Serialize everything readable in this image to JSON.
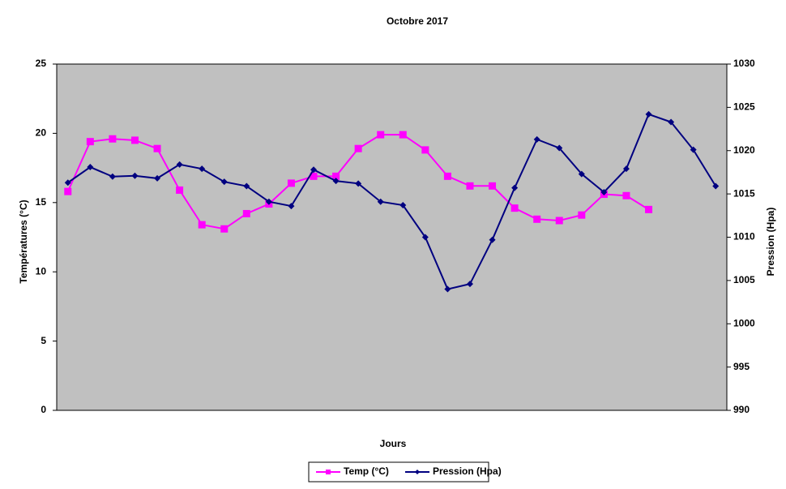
{
  "chart_data": {
    "type": "line",
    "title": "Octobre 2017",
    "xlabel": "Jours",
    "ylabel": "Températures (°C)",
    "y2label": "Pression (Hpa)",
    "categories": [
      null,
      null,
      null,
      null,
      null,
      null,
      null,
      null,
      null,
      null,
      null,
      null,
      null,
      null,
      null,
      null,
      null,
      null,
      null,
      null,
      null,
      null,
      null,
      null,
      null,
      null,
      null,
      null,
      null,
      null
    ],
    "series": [
      {
        "name": "Temp (°C)",
        "color": "#ff00ff",
        "marker": "square",
        "values": [
          15.8,
          19.4,
          19.6,
          19.5,
          18.9,
          15.9,
          13.4,
          13.1,
          14.2,
          14.9,
          16.4,
          16.9,
          16.9,
          18.9,
          19.9,
          19.9,
          18.8,
          16.9,
          16.2,
          16.2,
          14.6,
          13.8,
          13.7,
          14.1,
          15.6,
          15.5,
          14.5,
          null,
          null,
          null
        ]
      },
      {
        "name": "Pression (Hpa)",
        "color": "#000080",
        "marker": "diamond",
        "axis": "y2",
        "values": [
          1016.3,
          1018.1,
          1017.0,
          1017.1,
          1016.8,
          1018.4,
          1017.9,
          1016.4,
          1015.9,
          1014.1,
          1013.6,
          1017.8,
          1016.5,
          1016.2,
          1014.1,
          1013.7,
          1010.0,
          1004.0,
          1004.6,
          1009.7,
          1015.7,
          1021.3,
          1020.3,
          1017.3,
          1015.2,
          1017.9,
          1024.2,
          1023.3,
          1020.1,
          1015.9
        ]
      }
    ],
    "ylim": [
      0,
      25
    ],
    "yticks": [
      0,
      5,
      10,
      15,
      20,
      25
    ],
    "y2lim": [
      990,
      1030
    ],
    "y2ticks": [
      990,
      995,
      1000,
      1005,
      1010,
      1015,
      1020,
      1025,
      1030
    ],
    "grid": false,
    "legend": "bottom",
    "plot_background": "#c0c0c0"
  }
}
